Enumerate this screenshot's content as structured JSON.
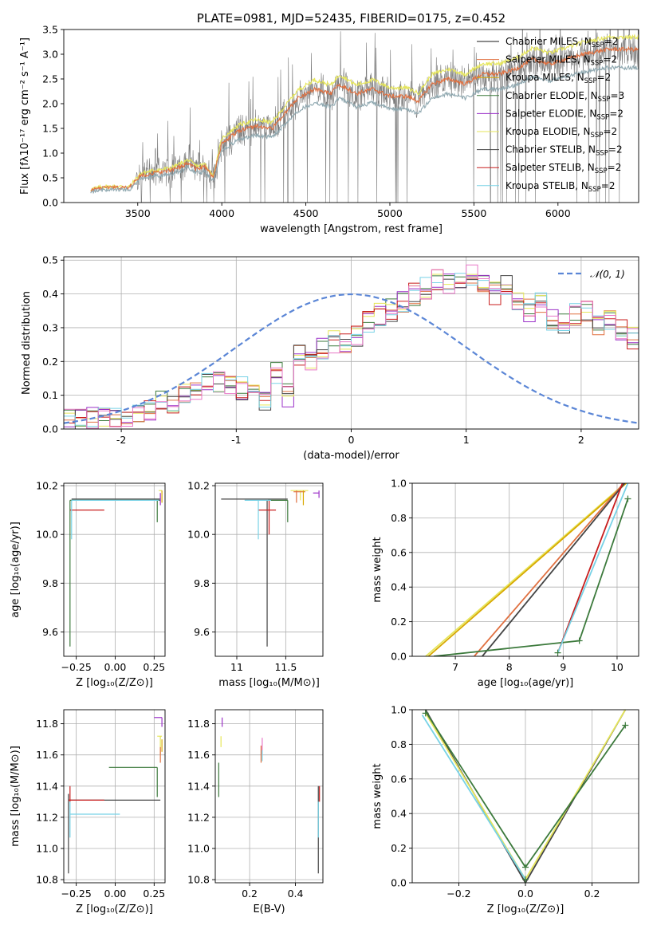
{
  "chart_data": [
    {
      "id": "spectrum",
      "type": "line",
      "title": "PLATE=0981, MJD=52435, FIBERID=0175, z=0.452",
      "xlabel": "wavelength [Angstrom, rest frame]",
      "ylabel": "Flux [fλ10⁻¹⁷ erg cm⁻² s⁻¹ A⁻¹]",
      "xlim": [
        3060,
        6480
      ],
      "ylim": [
        0,
        3.5
      ],
      "xticks": [
        3500,
        4000,
        4500,
        5000,
        5500,
        6000
      ],
      "yticks": [
        0.0,
        0.5,
        1.0,
        1.5,
        2.0,
        2.5,
        3.0,
        3.5
      ],
      "grid": false,
      "legend_position": "top-right",
      "legend": [
        {
          "name": "Chabrier MILES",
          "nssp": "2",
          "color": "#1a1a1a"
        },
        {
          "name": "Salpeter MILES",
          "nssp": "2",
          "color": "#e07040"
        },
        {
          "name": "Kroupa MILES",
          "nssp": "2",
          "color": "#d8a800"
        },
        {
          "name": "Chabrier ELODIE",
          "nssp": "3",
          "color": "#3c7a3c"
        },
        {
          "name": "Salpeter ELODIE",
          "nssp": "2",
          "color": "#9b30c8"
        },
        {
          "name": "Kroupa ELODIE",
          "nssp": "2",
          "color": "#e6e65a"
        },
        {
          "name": "Chabrier STELIB",
          "nssp": "2",
          "color": "#444444"
        },
        {
          "name": "Salpeter STELIB",
          "nssp": "2",
          "color": "#c81e1e"
        },
        {
          "name": "Kroupa STELIB",
          "nssp": "2",
          "color": "#78d2e6"
        }
      ],
      "model_start": 3220,
      "data_start": 3490,
      "model_key": [
        [
          3220,
          0.25
        ],
        [
          3300,
          0.3
        ],
        [
          3450,
          0.3
        ],
        [
          3520,
          0.55
        ],
        [
          3600,
          0.6
        ],
        [
          3700,
          0.65
        ],
        [
          3800,
          0.8
        ],
        [
          3850,
          0.68
        ],
        [
          3900,
          0.72
        ],
        [
          3950,
          0.5
        ],
        [
          4000,
          1.2
        ],
        [
          4100,
          1.45
        ],
        [
          4200,
          1.55
        ],
        [
          4300,
          1.5
        ],
        [
          4350,
          1.7
        ],
        [
          4450,
          2.1
        ],
        [
          4550,
          2.3
        ],
        [
          4650,
          2.2
        ],
        [
          4700,
          2.4
        ],
        [
          4800,
          2.2
        ],
        [
          4900,
          2.3
        ],
        [
          5000,
          2.15
        ],
        [
          5100,
          2.15
        ],
        [
          5170,
          2.05
        ],
        [
          5250,
          2.4
        ],
        [
          5350,
          2.5
        ],
        [
          5450,
          2.4
        ],
        [
          5550,
          2.6
        ],
        [
          5650,
          2.6
        ],
        [
          5750,
          2.7
        ],
        [
          5850,
          2.9
        ],
        [
          5950,
          2.8
        ],
        [
          6050,
          2.9
        ],
        [
          6150,
          3.0
        ],
        [
          6300,
          3.1
        ]
      ],
      "models": [
        {
          "color": "#e6e65a",
          "scale": 1.08
        },
        {
          "color": "#e07040",
          "scale": 1.0
        },
        {
          "color": "#8fa8b0",
          "scale": 0.88
        }
      ]
    },
    {
      "id": "residuals",
      "type": "histogram",
      "xlabel": "(data-model)/error",
      "ylabel": "Normed distribution",
      "xlim": [
        -2.5,
        2.5
      ],
      "ylim": [
        0,
        0.51
      ],
      "xticks": [
        -2,
        -1,
        0,
        1,
        2
      ],
      "yticks": [
        0.0,
        0.1,
        0.2,
        0.3,
        0.4,
        0.5
      ],
      "grid": true,
      "legend_position": "top-right",
      "reference_curve": {
        "label": "𝒩(0, 1)",
        "mean": 0,
        "sigma": 1,
        "color": "#5b86d6"
      },
      "bin_width": 0.1,
      "base_histogram": [
        0.01,
        0.01,
        0.01,
        0.015,
        0.02,
        0.02,
        0.03,
        0.04,
        0.06,
        0.06,
        0.09,
        0.1,
        0.11,
        0.12,
        0.11,
        0.1,
        0.12,
        0.07,
        0.15,
        0.08,
        0.2,
        0.19,
        0.22,
        0.24,
        0.23,
        0.25,
        0.3,
        0.32,
        0.33,
        0.36,
        0.38,
        0.4,
        0.42,
        0.41,
        0.43,
        0.44,
        0.4,
        0.38,
        0.41,
        0.36,
        0.33,
        0.35,
        0.3,
        0.29,
        0.32,
        0.33,
        0.29,
        0.31,
        0.27,
        0.25
      ],
      "base_histogram_tail": [
        0.25,
        0.22,
        0.2,
        0.21,
        0.18,
        0.17,
        0.19,
        0.16,
        0.15,
        0.13,
        0.1,
        0.12,
        0.12,
        0.1,
        0.09,
        0.1,
        0.08,
        0.1,
        0.09,
        0.08,
        0.07,
        0.08,
        0.07,
        0.06,
        0.05,
        0.1,
        0.08,
        0.07,
        0.07,
        0.06,
        0.05,
        0.05,
        0.06,
        0.05,
        0.04,
        0.05,
        0.04,
        0.05,
        0.04,
        0.03,
        0.05,
        0.04,
        0.04,
        0.03,
        0.03,
        0.03,
        0.02,
        0.03,
        0.02,
        0.02
      ],
      "series_colors": [
        "#3c7a3c",
        "#9b30c8",
        "#e07040",
        "#e6e65a",
        "#444444",
        "#c81e1e",
        "#78d2e6",
        "#e878c8"
      ]
    },
    {
      "id": "age-vs-Z",
      "type": "errorbar",
      "xlabel": "Z [log₁₀(Z/Z⊙)]",
      "ylabel": "age  [log₁₀(age/yr)]",
      "xlim": [
        -0.33,
        0.32
      ],
      "ylim": [
        9.5,
        10.21
      ],
      "xticks": [
        -0.25,
        0.0,
        0.25
      ],
      "xtick_labels": [
        "−0.25",
        "0.00",
        "0.25"
      ],
      "yticks": [
        9.6,
        9.8,
        10.0,
        10.2
      ],
      "grid": true,
      "segments": [
        {
          "c": "#3c7a3c",
          "x1": -0.29,
          "x2": 0.29,
          "y1": 10.14,
          "y2": 10.14
        },
        {
          "c": "#3c7a3c",
          "x1": -0.29,
          "x2": -0.29,
          "y1": 9.54,
          "y2": 10.14
        },
        {
          "c": "#3c7a3c",
          "x1": 0.27,
          "x2": 0.27,
          "y1": 10.05,
          "y2": 10.14
        },
        {
          "c": "#444444",
          "x1": -0.28,
          "x2": 0.29,
          "y1": 10.145,
          "y2": 10.145
        },
        {
          "c": "#c81e1e",
          "x1": -0.29,
          "x2": -0.07,
          "y1": 10.1,
          "y2": 10.1
        },
        {
          "c": "#78d2e6",
          "x1": -0.28,
          "x2": -0.28,
          "y1": 9.98,
          "y2": 10.14
        },
        {
          "c": "#78d2e6",
          "x1": -0.28,
          "x2": 0.28,
          "y1": 10.14,
          "y2": 10.14
        },
        {
          "c": "#9b30c8",
          "x1": 0.29,
          "x2": 0.29,
          "y1": 10.12,
          "y2": 10.17
        },
        {
          "c": "#e6e65a",
          "x1": 0.28,
          "x2": 0.3,
          "y1": 10.18,
          "y2": 10.18
        },
        {
          "c": "#d8a800",
          "x1": 0.3,
          "x2": 0.3,
          "y1": 10.13,
          "y2": 10.18
        }
      ]
    },
    {
      "id": "age-vs-mass",
      "type": "errorbar",
      "xlabel": "mass [log₁₀(M/M⊙)]",
      "ylabel": "",
      "xlim": [
        10.78,
        11.88
      ],
      "ylim": [
        9.5,
        10.21
      ],
      "xticks": [
        11.0,
        11.5
      ],
      "yticks": [
        9.6,
        9.8,
        10.0,
        10.2
      ],
      "grid": true,
      "segments": [
        {
          "c": "#444444",
          "x1": 10.84,
          "x2": 11.52,
          "y1": 10.145,
          "y2": 10.145
        },
        {
          "c": "#444444",
          "x1": 11.31,
          "x2": 11.31,
          "y1": 9.54,
          "y2": 10.14
        },
        {
          "c": "#3c7a3c",
          "x1": 11.32,
          "x2": 11.52,
          "y1": 10.14,
          "y2": 10.14
        },
        {
          "c": "#3c7a3c",
          "x1": 11.52,
          "x2": 11.52,
          "y1": 10.05,
          "y2": 10.14
        },
        {
          "c": "#c81e1e",
          "x1": 11.22,
          "x2": 11.4,
          "y1": 10.1,
          "y2": 10.1
        },
        {
          "c": "#c81e1e",
          "x1": 11.33,
          "x2": 11.33,
          "y1": 10.0,
          "y2": 10.14
        },
        {
          "c": "#78d2e6",
          "x1": 11.22,
          "x2": 11.22,
          "y1": 9.98,
          "y2": 10.14
        },
        {
          "c": "#78d2e6",
          "x1": 11.08,
          "x2": 11.35,
          "y1": 10.14,
          "y2": 10.14
        },
        {
          "c": "#e6e65a",
          "x1": 11.55,
          "x2": 11.73,
          "y1": 10.18,
          "y2": 10.18
        },
        {
          "c": "#e6e65a",
          "x1": 11.65,
          "x2": 11.65,
          "y1": 10.14,
          "y2": 10.18
        },
        {
          "c": "#e07040",
          "x1": 11.58,
          "x2": 11.7,
          "y1": 10.175,
          "y2": 10.175
        },
        {
          "c": "#e07040",
          "x1": 11.61,
          "x2": 11.61,
          "y1": 10.13,
          "y2": 10.18
        },
        {
          "c": "#9b30c8",
          "x1": 11.78,
          "x2": 11.84,
          "y1": 10.17,
          "y2": 10.17
        },
        {
          "c": "#9b30c8",
          "x1": 11.84,
          "x2": 11.84,
          "y1": 10.15,
          "y2": 10.18
        },
        {
          "c": "#d8a800",
          "x1": 11.68,
          "x2": 11.68,
          "y1": 10.12,
          "y2": 10.18
        }
      ]
    },
    {
      "id": "mass-weight-vs-age",
      "type": "line",
      "xlabel": "age  [log₁₀(age/yr)]",
      "ylabel": "mass weight",
      "xlim": [
        6.2,
        10.4
      ],
      "ylim": [
        0,
        1.0
      ],
      "xticks": [
        7,
        8,
        9,
        10
      ],
      "yticks": [
        0.0,
        0.2,
        0.4,
        0.6,
        0.8,
        1.0
      ],
      "grid": true,
      "series": [
        {
          "c": "#e6e65a",
          "pts": [
            [
              6.45,
              0.0
            ],
            [
              10.15,
              1.0
            ]
          ]
        },
        {
          "c": "#d8a800",
          "pts": [
            [
              6.5,
              0.0
            ],
            [
              10.17,
              1.0
            ]
          ]
        },
        {
          "c": "#e07040",
          "pts": [
            [
              7.35,
              0.0
            ],
            [
              10.12,
              1.0
            ]
          ]
        },
        {
          "c": "#444444",
          "pts": [
            [
              7.5,
              0.0
            ],
            [
              10.14,
              1.0
            ]
          ]
        },
        {
          "c": "#3c7a3c",
          "pts": [
            [
              6.6,
              0.0
            ],
            [
              9.3,
              0.09
            ],
            [
              10.2,
              0.91
            ]
          ]
        },
        {
          "c": "#c81e1e",
          "pts": [
            [
              8.9,
              0.02
            ],
            [
              10.1,
              1.0
            ]
          ]
        },
        {
          "c": "#78d2e6",
          "pts": [
            [
              8.9,
              0.02
            ],
            [
              10.2,
              1.0
            ]
          ]
        }
      ],
      "markers": [
        [
          9.3,
          0.09
        ],
        [
          10.2,
          0.91
        ],
        [
          8.9,
          0.02
        ]
      ]
    },
    {
      "id": "mass-vs-Z",
      "type": "errorbar",
      "xlabel": "Z [log₁₀(Z/Z⊙)]",
      "ylabel": "mass [log₁₀(M/M⊙)]",
      "xlim": [
        -0.33,
        0.32
      ],
      "ylim": [
        10.78,
        11.89
      ],
      "xticks": [
        -0.25,
        0.0,
        0.25
      ],
      "xtick_labels": [
        "−0.25",
        "0.00",
        "0.25"
      ],
      "yticks": [
        10.8,
        11.0,
        11.2,
        11.4,
        11.6,
        11.8
      ],
      "grid": true,
      "segments": [
        {
          "c": "#444444",
          "x1": -0.3,
          "x2": 0.29,
          "y1": 11.31,
          "y2": 11.31
        },
        {
          "c": "#444444",
          "x1": -0.3,
          "x2": -0.3,
          "y1": 10.84,
          "y2": 11.35
        },
        {
          "c": "#c81e1e",
          "x1": -0.3,
          "x2": -0.07,
          "y1": 11.31,
          "y2": 11.31
        },
        {
          "c": "#c81e1e",
          "x1": -0.29,
          "x2": -0.29,
          "y1": 11.3,
          "y2": 11.4
        },
        {
          "c": "#78d2e6",
          "x1": -0.29,
          "x2": 0.03,
          "y1": 11.22,
          "y2": 11.22
        },
        {
          "c": "#78d2e6",
          "x1": -0.29,
          "x2": -0.29,
          "y1": 11.07,
          "y2": 11.3
        },
        {
          "c": "#3c7a3c",
          "x1": -0.04,
          "x2": 0.27,
          "y1": 11.52,
          "y2": 11.52
        },
        {
          "c": "#3c7a3c",
          "x1": 0.27,
          "x2": 0.27,
          "y1": 11.33,
          "y2": 11.52
        },
        {
          "c": "#9b30c8",
          "x1": 0.25,
          "x2": 0.3,
          "y1": 11.84,
          "y2": 11.84
        },
        {
          "c": "#9b30c8",
          "x1": 0.3,
          "x2": 0.3,
          "y1": 11.78,
          "y2": 11.84
        },
        {
          "c": "#e6e65a",
          "x1": 0.27,
          "x2": 0.3,
          "y1": 11.72,
          "y2": 11.72
        },
        {
          "c": "#e6e65a",
          "x1": 0.29,
          "x2": 0.29,
          "y1": 11.6,
          "y2": 11.72
        },
        {
          "c": "#e07040",
          "x1": 0.29,
          "x2": 0.29,
          "y1": 11.55,
          "y2": 11.65
        },
        {
          "c": "#d8a800",
          "x1": 0.3,
          "x2": 0.3,
          "y1": 11.62,
          "y2": 11.7
        }
      ]
    },
    {
      "id": "mass-vs-ebv",
      "type": "errorbar",
      "xlabel": "E(B-V)",
      "ylabel": "",
      "xlim": [
        0.05,
        0.52
      ],
      "ylim": [
        10.78,
        11.89
      ],
      "xticks": [
        0.2,
        0.4
      ],
      "yticks": [
        10.8,
        11.0,
        11.2,
        11.4,
        11.6,
        11.8
      ],
      "grid": true,
      "segments": [
        {
          "c": "#3c7a3c",
          "x1": 0.065,
          "x2": 0.065,
          "y1": 11.33,
          "y2": 11.55
        },
        {
          "c": "#9b30c8",
          "x1": 0.08,
          "x2": 0.08,
          "y1": 11.78,
          "y2": 11.84
        },
        {
          "c": "#e6e65a",
          "x1": 0.075,
          "x2": 0.075,
          "y1": 11.65,
          "y2": 11.72
        },
        {
          "c": "#e878c8",
          "x1": 0.255,
          "x2": 0.255,
          "y1": 11.6,
          "y2": 11.71
        },
        {
          "c": "#e07040",
          "x1": 0.25,
          "x2": 0.25,
          "y1": 11.55,
          "y2": 11.66
        },
        {
          "c": "#78d2e6",
          "x1": 0.255,
          "x2": 0.255,
          "y1": 11.56,
          "y2": 11.63
        },
        {
          "c": "#444444",
          "x1": 0.5,
          "x2": 0.5,
          "y1": 10.84,
          "y2": 11.4
        },
        {
          "c": "#c81e1e",
          "x1": 0.505,
          "x2": 0.505,
          "y1": 11.3,
          "y2": 11.4
        },
        {
          "c": "#78d2e6",
          "x1": 0.5,
          "x2": 0.5,
          "y1": 11.07,
          "y2": 11.3
        }
      ]
    },
    {
      "id": "mass-weight-vs-Z",
      "type": "line",
      "xlabel": "Z [log₁₀(Z/Z⊙)]",
      "ylabel": "mass weight",
      "xlim": [
        -0.34,
        0.34
      ],
      "ylim": [
        0,
        1.0
      ],
      "xticks": [
        -0.2,
        0.0,
        0.2
      ],
      "xtick_labels": [
        "−0.2",
        "0.0",
        "0.2"
      ],
      "yticks": [
        0.0,
        0.2,
        0.4,
        0.6,
        0.8,
        1.0
      ],
      "grid": true,
      "series": [
        {
          "c": "#444444",
          "pts": [
            [
              -0.3,
              1.0
            ],
            [
              0.0,
              0.0
            ],
            [
              0.3,
              1.0
            ]
          ]
        },
        {
          "c": "#e6e65a",
          "pts": [
            [
              -0.3,
              0.98
            ],
            [
              0.0,
              0.02
            ],
            [
              0.3,
              1.0
            ]
          ]
        },
        {
          "c": "#3c7a3c",
          "pts": [
            [
              -0.3,
              0.99
            ],
            [
              0.0,
              0.09
            ],
            [
              0.3,
              0.91
            ]
          ]
        },
        {
          "c": "#78d2e6",
          "pts": [
            [
              -0.31,
              0.97
            ],
            [
              0.0,
              0.02
            ]
          ]
        }
      ],
      "markers": [
        [
          -0.3,
          0.98
        ],
        [
          0.0,
          0.09
        ],
        [
          0.3,
          0.91
        ],
        [
          0.0,
          0.02
        ]
      ]
    }
  ]
}
